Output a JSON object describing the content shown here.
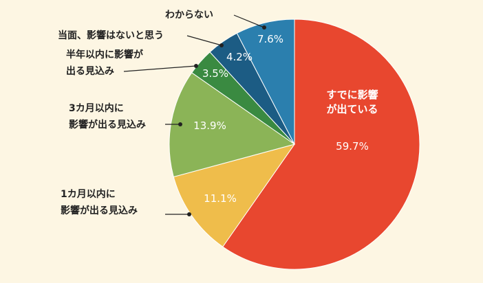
{
  "chart_data": {
    "type": "pie",
    "title": "",
    "start": "12 o'clock",
    "direction": "clockwise",
    "slices": [
      {
        "label": [
          "すでに影響",
          "が出ている"
        ],
        "value": 59.7,
        "value_text": "59.7%",
        "color": "#e8472f",
        "label_style": "inside"
      },
      {
        "label": [
          "1カ月以内に",
          "影響が出る見込み"
        ],
        "value": 11.1,
        "value_text": "11.1%",
        "color": "#efbd4b",
        "label_style": "callout"
      },
      {
        "label": [
          "3カ月以内に",
          "影響が出る見込み"
        ],
        "value": 13.9,
        "value_text": "13.9%",
        "color": "#8bb457",
        "label_style": "callout"
      },
      {
        "label": [
          "半年以内に影響が",
          "出る見込み"
        ],
        "value": 3.5,
        "value_text": "3.5%",
        "color": "#3a8a41",
        "label_style": "callout"
      },
      {
        "label": [
          "当面、影響はないと思う"
        ],
        "value": 4.2,
        "value_text": "4.2%",
        "color": "#1c5c84",
        "label_style": "callout"
      },
      {
        "label": [
          "わからない"
        ],
        "value": 7.6,
        "value_text": "7.6%",
        "color": "#2b7fae",
        "label_style": "callout"
      }
    ]
  }
}
